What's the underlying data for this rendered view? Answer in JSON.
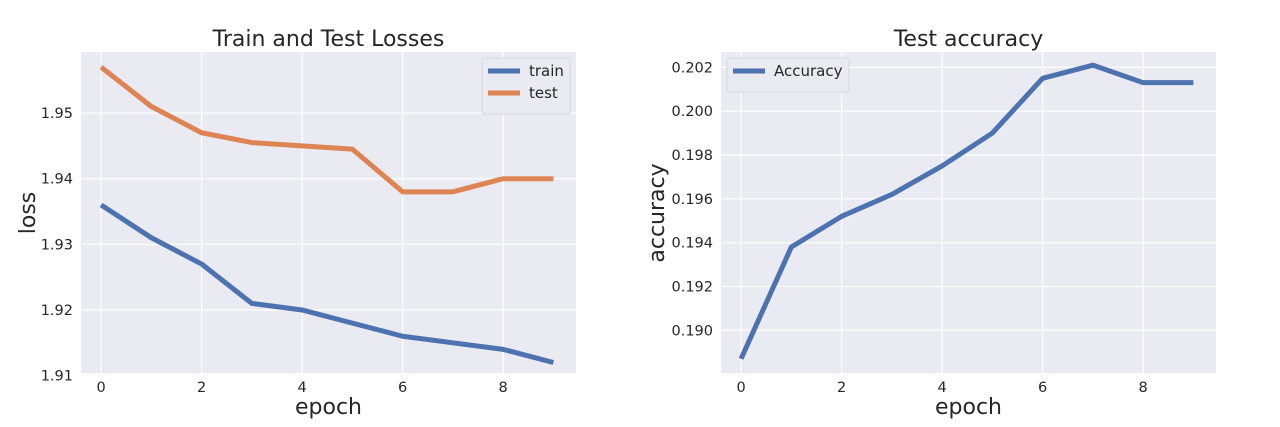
{
  "chart_data": [
    {
      "type": "line",
      "title": "Train and Test Losses",
      "xlabel": "epoch",
      "ylabel": "loss",
      "x": [
        0,
        1,
        2,
        3,
        4,
        5,
        6,
        7,
        8,
        9
      ],
      "xticks": [
        0,
        2,
        4,
        6,
        8
      ],
      "yticks": [
        1.91,
        1.92,
        1.93,
        1.94,
        1.95
      ],
      "ytick_labels": [
        "1.91",
        "1.92",
        "1.93",
        "1.94",
        "1.95"
      ],
      "xlim": [
        -0.4,
        9.45
      ],
      "ylim": [
        1.9104,
        1.9593
      ],
      "series": [
        {
          "name": "train",
          "color": "#4c72b0",
          "values": [
            1.936,
            1.931,
            1.927,
            1.921,
            1.92,
            1.918,
            1.916,
            1.915,
            1.914,
            1.912
          ]
        },
        {
          "name": "test",
          "color": "#dd8452",
          "values": [
            1.957,
            1.951,
            1.947,
            1.9455,
            1.945,
            1.9445,
            1.938,
            1.938,
            1.94,
            1.94
          ]
        }
      ],
      "legend": "top-right",
      "grid": true,
      "background": "#eaeaf2"
    },
    {
      "type": "line",
      "title": "Test accuracy",
      "xlabel": "epoch",
      "ylabel": "accuracy",
      "x": [
        0,
        1,
        2,
        3,
        4,
        5,
        6,
        7,
        8,
        9
      ],
      "xticks": [
        0,
        2,
        4,
        6,
        8
      ],
      "yticks": [
        0.19,
        0.192,
        0.194,
        0.196,
        0.198,
        0.2,
        0.202
      ],
      "ytick_labels": [
        "0.190",
        "0.192",
        "0.194",
        "0.196",
        "0.198",
        "0.200",
        "0.202"
      ],
      "xlim": [
        -0.4,
        9.45
      ],
      "ylim": [
        0.18805,
        0.2027
      ],
      "series": [
        {
          "name": "Accuracy",
          "color": "#4c72b0",
          "values": [
            0.1887,
            0.1938,
            0.1952,
            0.1962,
            0.1975,
            0.199,
            0.2015,
            0.2021,
            0.2013,
            0.2013
          ]
        }
      ],
      "legend": "top-left",
      "grid": true,
      "background": "#eaeaf2"
    }
  ]
}
